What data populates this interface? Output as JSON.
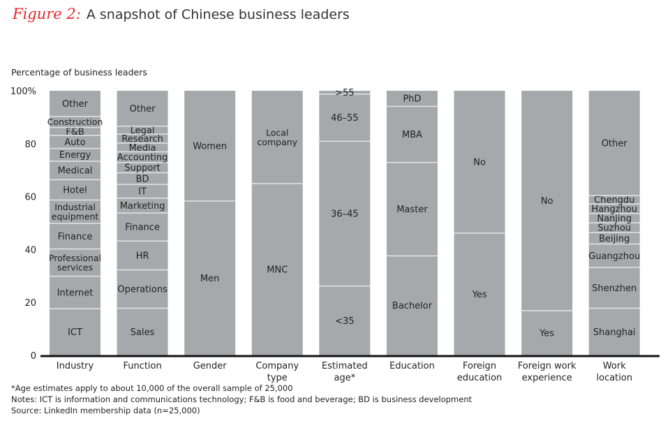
{
  "title": {
    "figure_label": "Figure 2:",
    "text": "A snapshot of Chinese business leaders"
  },
  "chart_data": {
    "type": "bar",
    "stacked": true,
    "ylabel": "Percentage of business leaders",
    "ylim": [
      0,
      100
    ],
    "yticks": [
      "0",
      "20",
      "40",
      "60",
      "80",
      "100%"
    ],
    "ytick_values": [
      0,
      20,
      40,
      60,
      80,
      100
    ],
    "bar_color": "#a7a8ab",
    "categories": [
      {
        "label": [
          "Industry"
        ],
        "segments": [
          {
            "name": "ICT",
            "value": 17.6
          },
          {
            "name": "Internet",
            "value": 12.3
          },
          {
            "name": "Professional services",
            "lines": [
              "Professional",
              "services"
            ],
            "value": 10.3
          },
          {
            "name": "Finance",
            "value": 9.7
          },
          {
            "name": "Industrial equipment",
            "lines": [
              "Industrial",
              "equipment"
            ],
            "value": 8.8
          },
          {
            "name": "Hotel",
            "value": 7.7
          },
          {
            "name": "Medical",
            "value": 7.0
          },
          {
            "name": "Energy",
            "value": 4.8
          },
          {
            "name": "Auto",
            "value": 4.9
          },
          {
            "name": "F&B",
            "value": 3.0
          },
          {
            "name": "Construction",
            "value": 4.2
          },
          {
            "name": "Other",
            "value": 9.7
          }
        ]
      },
      {
        "label": [
          "Function"
        ],
        "segments": [
          {
            "name": "Sales",
            "value": 17.8
          },
          {
            "name": "Operations",
            "value": 14.5
          },
          {
            "name": "HR",
            "value": 10.9
          },
          {
            "name": "Finance",
            "value": 10.6
          },
          {
            "name": "Marketing",
            "value": 5.6
          },
          {
            "name": "IT",
            "value": 5.2
          },
          {
            "name": "BD",
            "value": 4.4
          },
          {
            "name": "Support",
            "value": 3.9
          },
          {
            "name": "Accounting",
            "value": 4.0
          },
          {
            "name": "Media",
            "value": 3.3
          },
          {
            "name": "Research",
            "value": 3.4
          },
          {
            "name": "Legal",
            "value": 3.0
          },
          {
            "name": "Other",
            "value": 13.4
          }
        ]
      },
      {
        "label": [
          "Gender"
        ],
        "segments": [
          {
            "name": "Men",
            "value": 58.3
          },
          {
            "name": "Women",
            "value": 41.7
          }
        ]
      },
      {
        "label": [
          "Company",
          "type"
        ],
        "segments": [
          {
            "name": "MNC",
            "value": 64.9
          },
          {
            "name": "Local company",
            "lines": [
              "Local",
              "company"
            ],
            "value": 35.1
          }
        ]
      },
      {
        "label": [
          "Estimated",
          "age*"
        ],
        "segments": [
          {
            "name": "<35",
            "value": 26.2
          },
          {
            "name": "36–45",
            "value": 54.7
          },
          {
            "name": "46–55",
            "value": 17.8
          },
          {
            "name": ">55",
            "value": 1.3
          }
        ]
      },
      {
        "label": [
          "Education"
        ],
        "segments": [
          {
            "name": "Bachelor",
            "value": 37.6
          },
          {
            "name": "Master",
            "value": 35.3
          },
          {
            "name": "MBA",
            "value": 21.2
          },
          {
            "name": "PhD",
            "value": 5.9
          }
        ]
      },
      {
        "label": [
          "Foreign",
          "education"
        ],
        "segments": [
          {
            "name": "Yes",
            "value": 46.2
          },
          {
            "name": "No",
            "value": 53.8
          }
        ]
      },
      {
        "label": [
          "Foreign work",
          "experience"
        ],
        "segments": [
          {
            "name": "Yes",
            "value": 16.9
          },
          {
            "name": "No",
            "value": 83.1
          }
        ]
      },
      {
        "label": [
          "Work",
          "location"
        ],
        "segments": [
          {
            "name": "Shanghai",
            "value": 17.8
          },
          {
            "name": "Shenzhen",
            "value": 15.4
          },
          {
            "name": "Guangzhou",
            "value": 8.9
          },
          {
            "name": "Beijing",
            "value": 4.3
          },
          {
            "name": "Suzhou",
            "value": 3.7
          },
          {
            "name": "Nanjing",
            "value": 3.5
          },
          {
            "name": "Hangzhou",
            "value": 3.6
          },
          {
            "name": "Chengdu",
            "value": 3.2
          },
          {
            "name": "Other",
            "value": 39.6
          }
        ]
      }
    ]
  },
  "notes": [
    "*Age estimates apply to about 10,000 of the overall sample of 25,000",
    "Notes: ICT is information and communications technology; F&B is food and beverage; BD is business development",
    "Source: LinkedIn membership data (n=25,000)"
  ]
}
